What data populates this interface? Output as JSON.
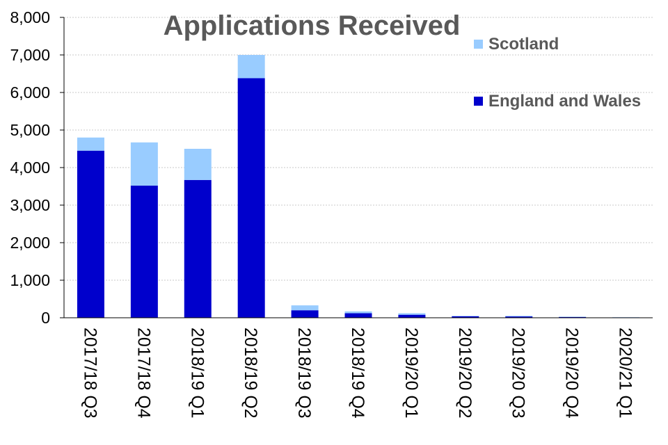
{
  "chart_data": {
    "type": "bar",
    "stacked": true,
    "title": "Applications Received",
    "categories": [
      "2017/18 Q3",
      "2017/18 Q4",
      "2018/19 Q1",
      "2018/19 Q2",
      "2018/19 Q3",
      "2018/19 Q4",
      "2019/20 Q1",
      "2019/20 Q2",
      "2019/20 Q3",
      "2019/20 Q4",
      "2020/21 Q1"
    ],
    "series": [
      {
        "name": "England and Wales",
        "color": "#0000cc",
        "values": [
          4450,
          3520,
          3670,
          6380,
          200,
          120,
          80,
          40,
          35,
          20,
          10
        ]
      },
      {
        "name": "Scotland",
        "color": "#99ccff",
        "values": [
          350,
          1150,
          830,
          620,
          130,
          50,
          40,
          10,
          15,
          10,
          5
        ]
      }
    ],
    "ylim": [
      0,
      8000
    ],
    "yticks": [
      0,
      1000,
      2000,
      3000,
      4000,
      5000,
      6000,
      7000,
      8000
    ],
    "ytick_labels": [
      "0",
      "1,000",
      "2,000",
      "3,000",
      "4,000",
      "5,000",
      "6,000",
      "7,000",
      "8,000"
    ],
    "grid": true,
    "legend_position": "top-right",
    "legend_order": [
      "Scotland",
      "England and Wales"
    ],
    "xlabel": "",
    "ylabel": ""
  }
}
